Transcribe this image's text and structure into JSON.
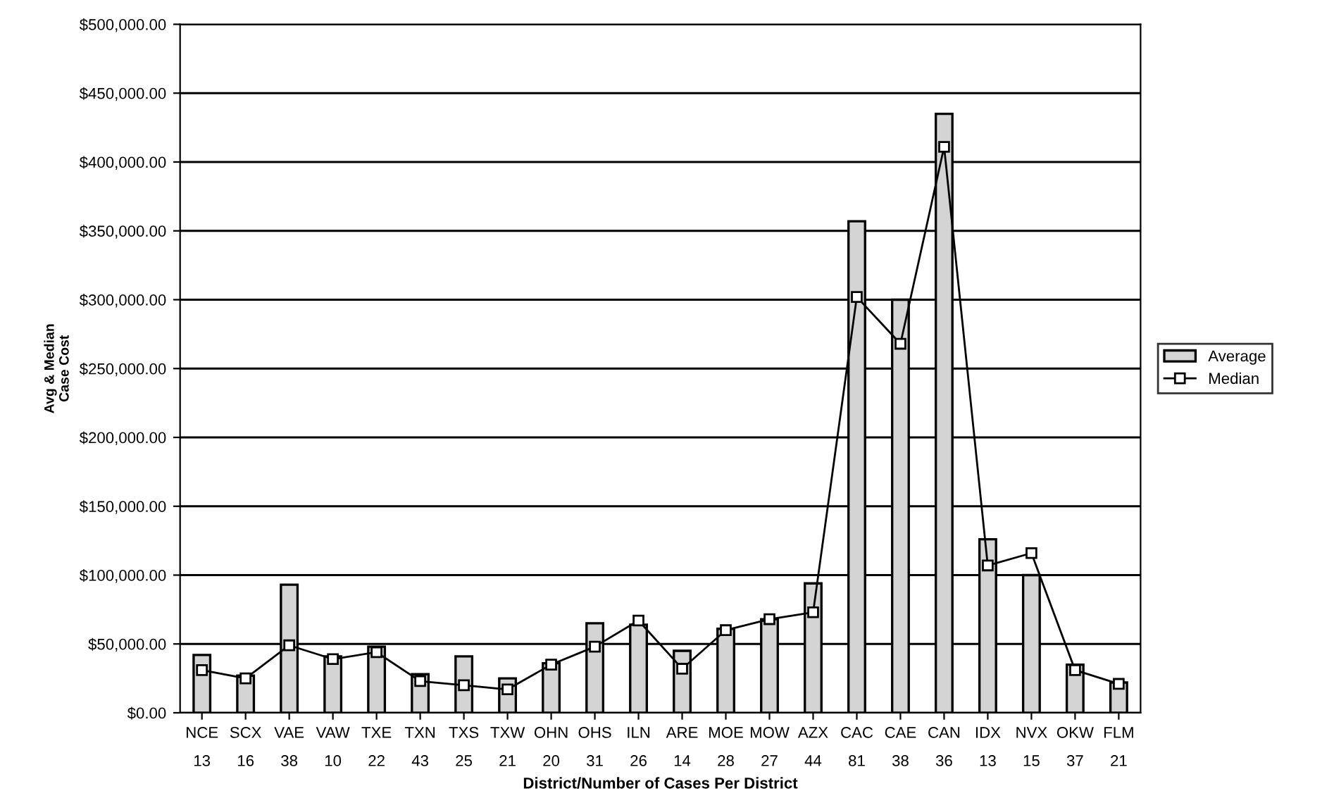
{
  "chart_data": {
    "type": "bar",
    "xlabel": "District/Number of Cases Per District",
    "ylabel": "Avg & Median\nCase Cost",
    "categories": [
      "NCE\n13",
      "SCX\n16",
      "VAE\n38",
      "VAW\n10",
      "TXE\n22",
      "TXN\n43",
      "TXS\n25",
      "TXW\n21",
      "OHN\n20",
      "OHS\n31",
      "ILN\n26",
      "ARE\n14",
      "MOE\n28",
      "MOW\n27",
      "AZX\n44",
      "CAC\n81",
      "CAE\n38",
      "CAN\n36",
      "IDX\n13",
      "NVX\n15",
      "OKW\n37",
      "FLM\n21"
    ],
    "series": [
      {
        "name": "Average",
        "color": "#d4d4d4",
        "values": [
          42000,
          27000,
          93000,
          41000,
          48000,
          28000,
          41000,
          25000,
          36000,
          65000,
          64000,
          45000,
          61000,
          68000,
          94000,
          357000,
          300000,
          435000,
          126000,
          100000,
          35000,
          22000
        ]
      },
      {
        "name": "Median",
        "type": "line",
        "color": "#000000",
        "marker": "square",
        "values": [
          31000,
          25000,
          49000,
          39000,
          44000,
          23000,
          20000,
          17000,
          35000,
          48000,
          67000,
          32000,
          60000,
          68000,
          73000,
          302000,
          268000,
          411000,
          107000,
          116000,
          31000,
          21000
        ]
      }
    ],
    "ylim": [
      0,
      500000
    ],
    "yticks": [
      {
        "value": 0,
        "label": "$0.00"
      },
      {
        "value": 50000,
        "label": "$50,000.00"
      },
      {
        "value": 100000,
        "label": "$100,000.00"
      },
      {
        "value": 150000,
        "label": "$150,000.00"
      },
      {
        "value": 200000,
        "label": "$200,000.00"
      },
      {
        "value": 250000,
        "label": "$250,000.00"
      },
      {
        "value": 300000,
        "label": "$300,000.00"
      },
      {
        "value": 350000,
        "label": "$350,000.00"
      },
      {
        "value": 400000,
        "label": "$400,000.00"
      },
      {
        "value": 450000,
        "label": "$450,000.00"
      },
      {
        "value": 500000,
        "label": "$500,000.00"
      }
    ],
    "grid": "y",
    "legend": "right"
  }
}
